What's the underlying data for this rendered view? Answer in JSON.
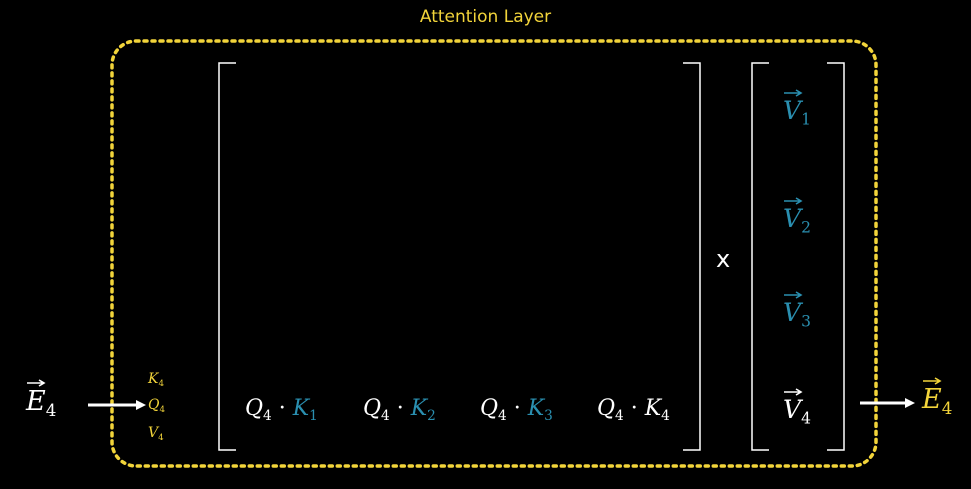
{
  "title": "Attention Layer",
  "input": {
    "symbol": "E",
    "index": "4"
  },
  "output": {
    "symbol": "E",
    "index": "4"
  },
  "input_vectors": [
    {
      "symbol": "K",
      "index": "4"
    },
    {
      "symbol": "Q",
      "index": "4"
    },
    {
      "symbol": "V",
      "index": "4"
    }
  ],
  "scores": [
    {
      "q": "Q",
      "qi": "4",
      "k": "K",
      "ki": "1"
    },
    {
      "q": "Q",
      "qi": "4",
      "k": "K",
      "ki": "2"
    },
    {
      "q": "Q",
      "qi": "4",
      "k": "K",
      "ki": "3"
    },
    {
      "q": "Q",
      "qi": "4",
      "k": "K",
      "ki": "4"
    }
  ],
  "dot_operator": "·",
  "times_symbol": "x",
  "values": [
    {
      "symbol": "V",
      "index": "1"
    },
    {
      "symbol": "V",
      "index": "2"
    },
    {
      "symbol": "V",
      "index": "3"
    },
    {
      "symbol": "V",
      "index": "4"
    }
  ],
  "colors": {
    "accent": "#f2d43a",
    "key_blue": "#2a8fb0",
    "text": "#ffffff",
    "background": "#000000"
  }
}
